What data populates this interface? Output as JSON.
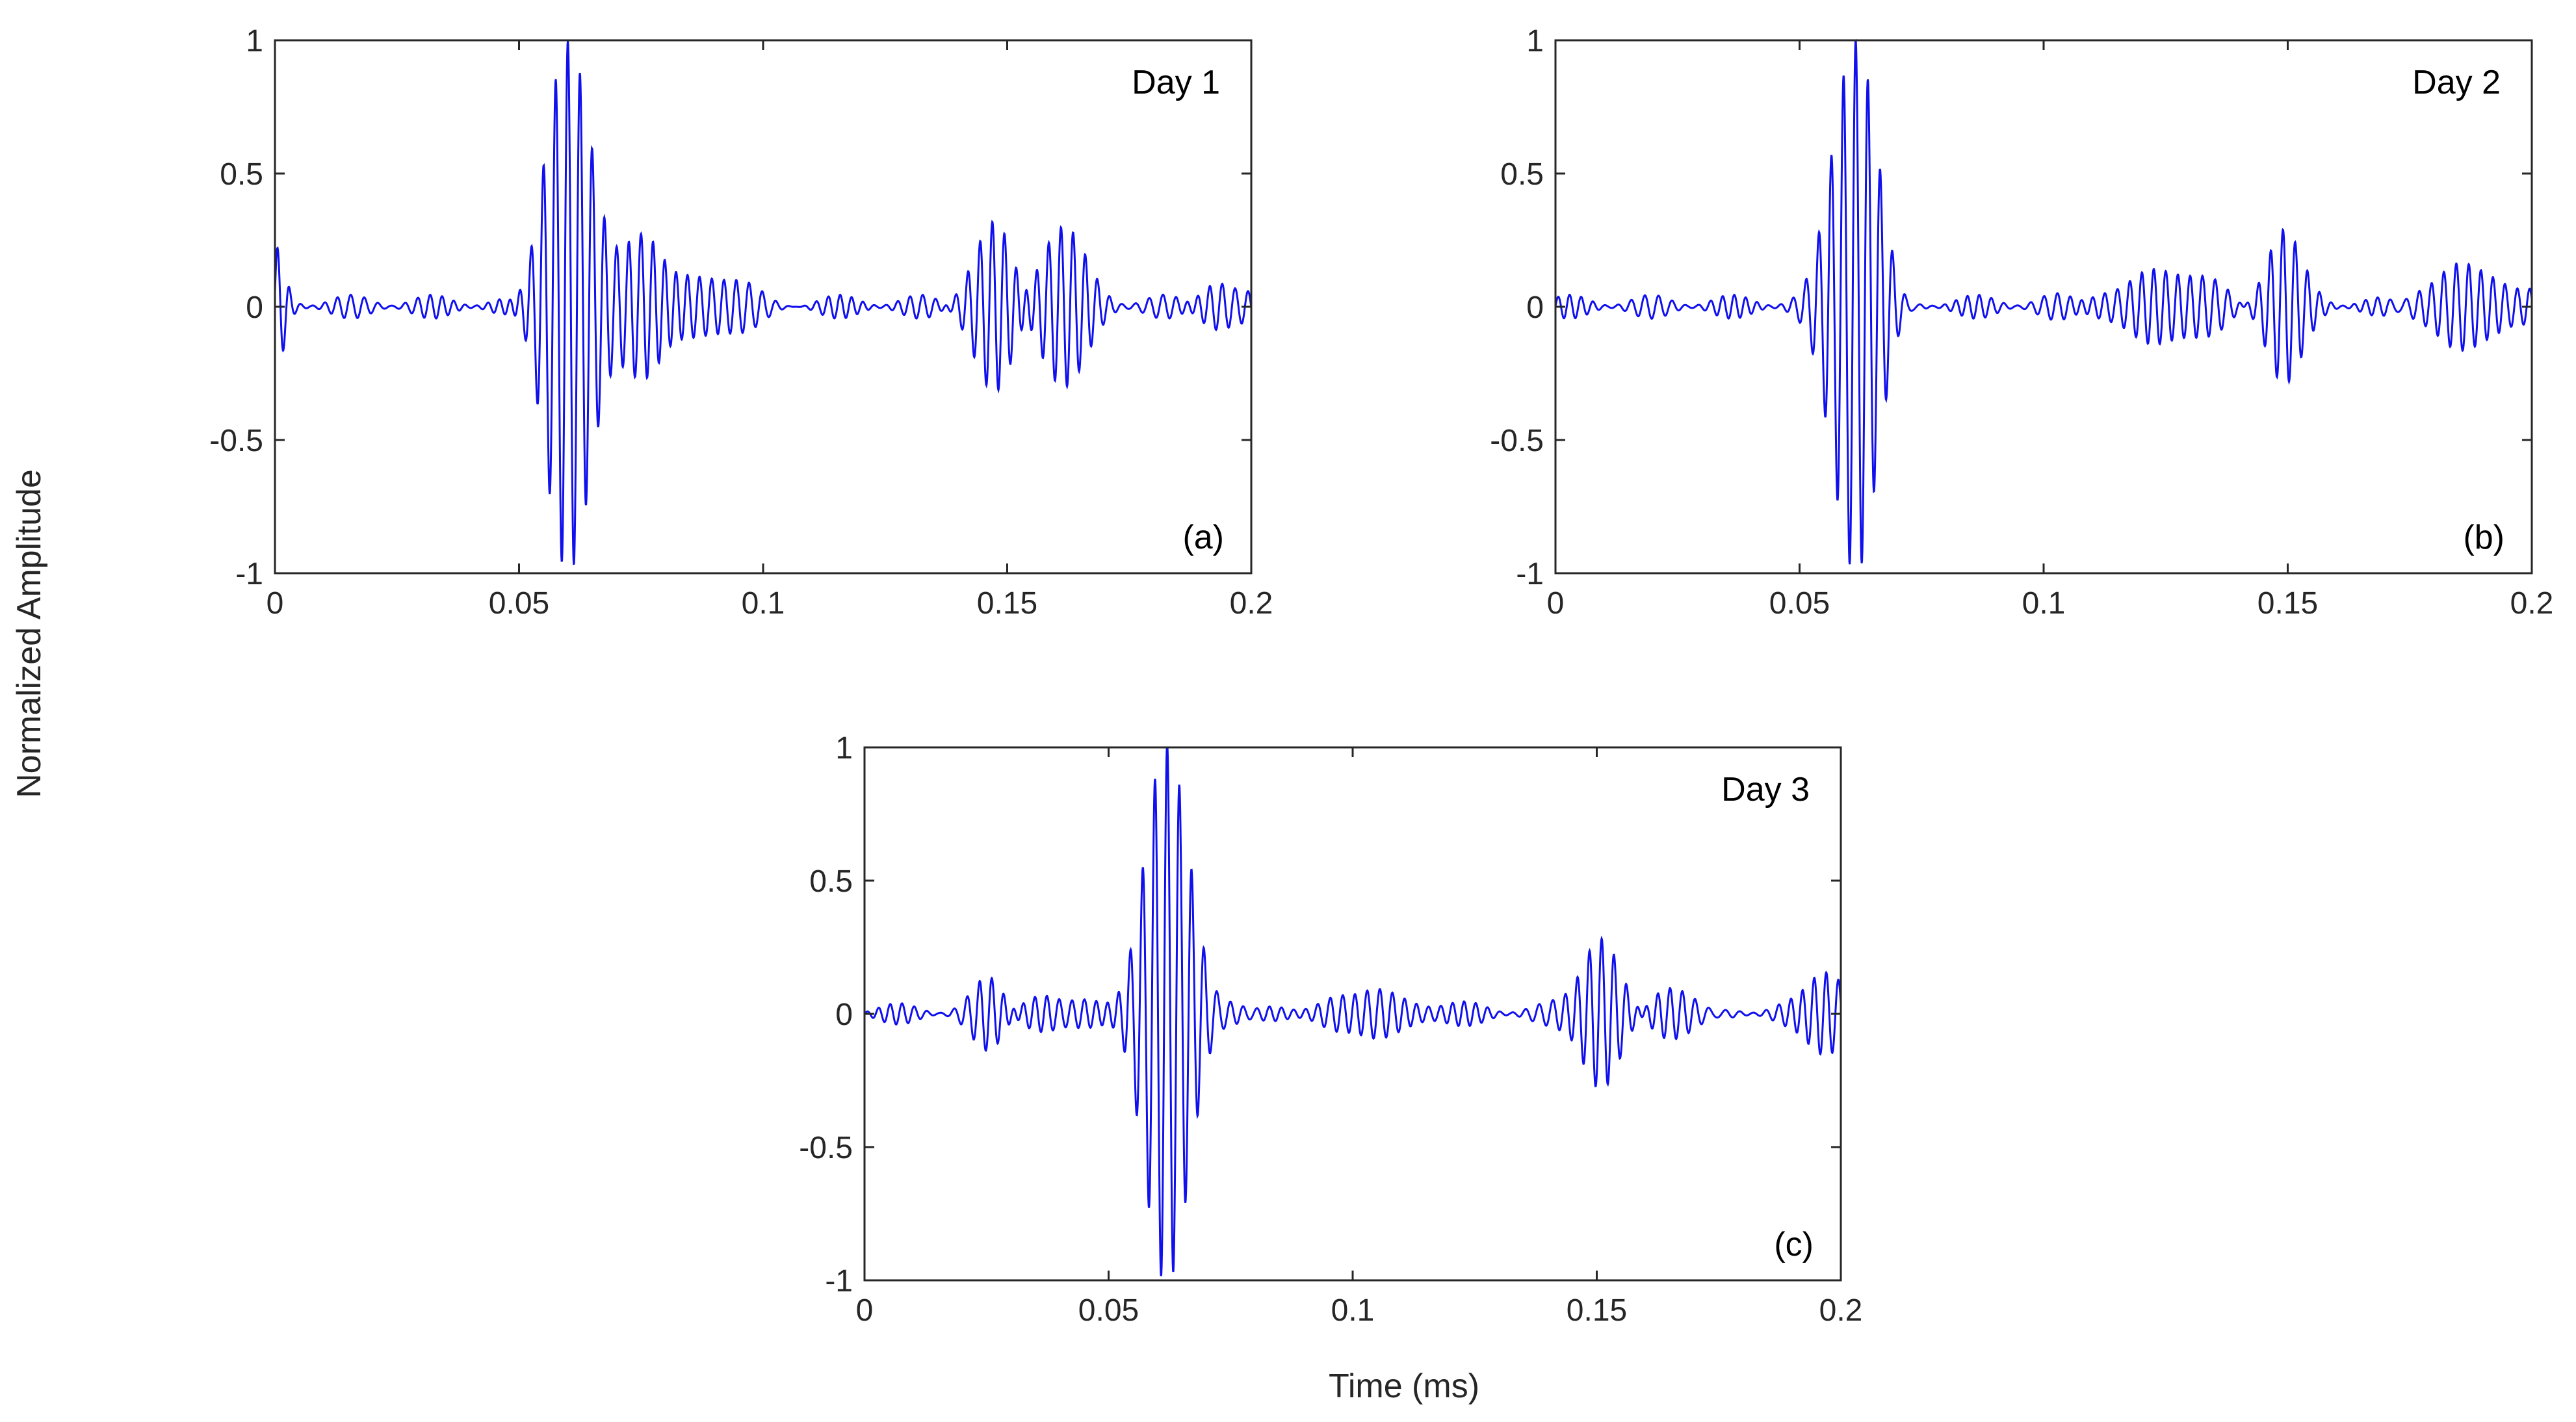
{
  "figure": {
    "shared_ylabel": "Normalized Amplitude",
    "shared_xlabel": "Time (ms)",
    "line_color": "#1010ee"
  },
  "chart_data": [
    {
      "type": "line",
      "day_label": "Day 1",
      "panel_label": "(a)",
      "xlim": [
        0,
        0.2
      ],
      "ylim": [
        -1,
        1
      ],
      "xticks": [
        0,
        0.05,
        0.1,
        0.15,
        0.2
      ],
      "xtick_labels": [
        "0",
        "0.05",
        "0.1",
        "0.15",
        "0.2"
      ],
      "yticks": [
        -1,
        -0.5,
        0,
        0.5,
        1
      ],
      "ytick_labels": [
        "-1",
        "-0.5",
        "0",
        "0.5",
        "1"
      ],
      "carrier_cycles_per_ms": 400,
      "packets": [
        {
          "t": 0.0005,
          "amp": 0.18,
          "width": 0.0015
        },
        {
          "t": 0.06,
          "amp": 1.0,
          "width": 0.0045
        },
        {
          "t": 0.075,
          "amp": 0.26,
          "width": 0.004
        },
        {
          "t": 0.0895,
          "amp": 0.1,
          "width": 0.007
        },
        {
          "t": 0.147,
          "amp": 0.3,
          "width": 0.004
        },
        {
          "t": 0.161,
          "amp": 0.28,
          "width": 0.0045
        },
        {
          "t": 0.194,
          "amp": 0.1,
          "width": 0.004
        }
      ],
      "noise_amp": 0.045
    },
    {
      "type": "line",
      "day_label": "Day 2",
      "panel_label": "(b)",
      "xlim": [
        0,
        0.2
      ],
      "ylim": [
        -1,
        1
      ],
      "xticks": [
        0,
        0.05,
        0.1,
        0.15,
        0.2
      ],
      "xtick_labels": [
        "0",
        "0.05",
        "0.1",
        "0.15",
        "0.2"
      ],
      "yticks": [
        -1,
        -0.5,
        0,
        0.5,
        1
      ],
      "ytick_labels": [
        "-1",
        "-0.5",
        "0",
        "0.5",
        "1"
      ],
      "carrier_cycles_per_ms": 400,
      "packets": [
        {
          "t": 0.0615,
          "amp": 1.0,
          "width": 0.0045
        },
        {
          "t": 0.125,
          "amp": 0.12,
          "width": 0.01
        },
        {
          "t": 0.149,
          "amp": 0.27,
          "width": 0.0035
        },
        {
          "t": 0.187,
          "amp": 0.13,
          "width": 0.008
        }
      ],
      "noise_amp": 0.045
    },
    {
      "type": "line",
      "day_label": "Day 3",
      "panel_label": "(c)",
      "xlim": [
        0,
        0.2
      ],
      "ylim": [
        -1,
        1
      ],
      "xticks": [
        0,
        0.05,
        0.1,
        0.15,
        0.2
      ],
      "xtick_labels": [
        "0",
        "0.05",
        "0.1",
        "0.15",
        "0.2"
      ],
      "yticks": [
        -1,
        -0.5,
        0,
        0.5,
        1
      ],
      "ytick_labels": [
        "-1",
        "-0.5",
        "0",
        "0.5",
        "1"
      ],
      "carrier_cycles_per_ms": 400,
      "packets": [
        {
          "t": 0.026,
          "amp": 0.14,
          "width": 0.003
        },
        {
          "t": 0.04,
          "amp": 0.09,
          "width": 0.007
        },
        {
          "t": 0.062,
          "amp": 1.0,
          "width": 0.0045
        },
        {
          "t": 0.098,
          "amp": 0.07,
          "width": 0.012
        },
        {
          "t": 0.151,
          "amp": 0.29,
          "width": 0.004
        },
        {
          "t": 0.165,
          "amp": 0.1,
          "width": 0.006
        },
        {
          "t": 0.197,
          "amp": 0.15,
          "width": 0.004
        }
      ],
      "noise_amp": 0.04
    }
  ]
}
